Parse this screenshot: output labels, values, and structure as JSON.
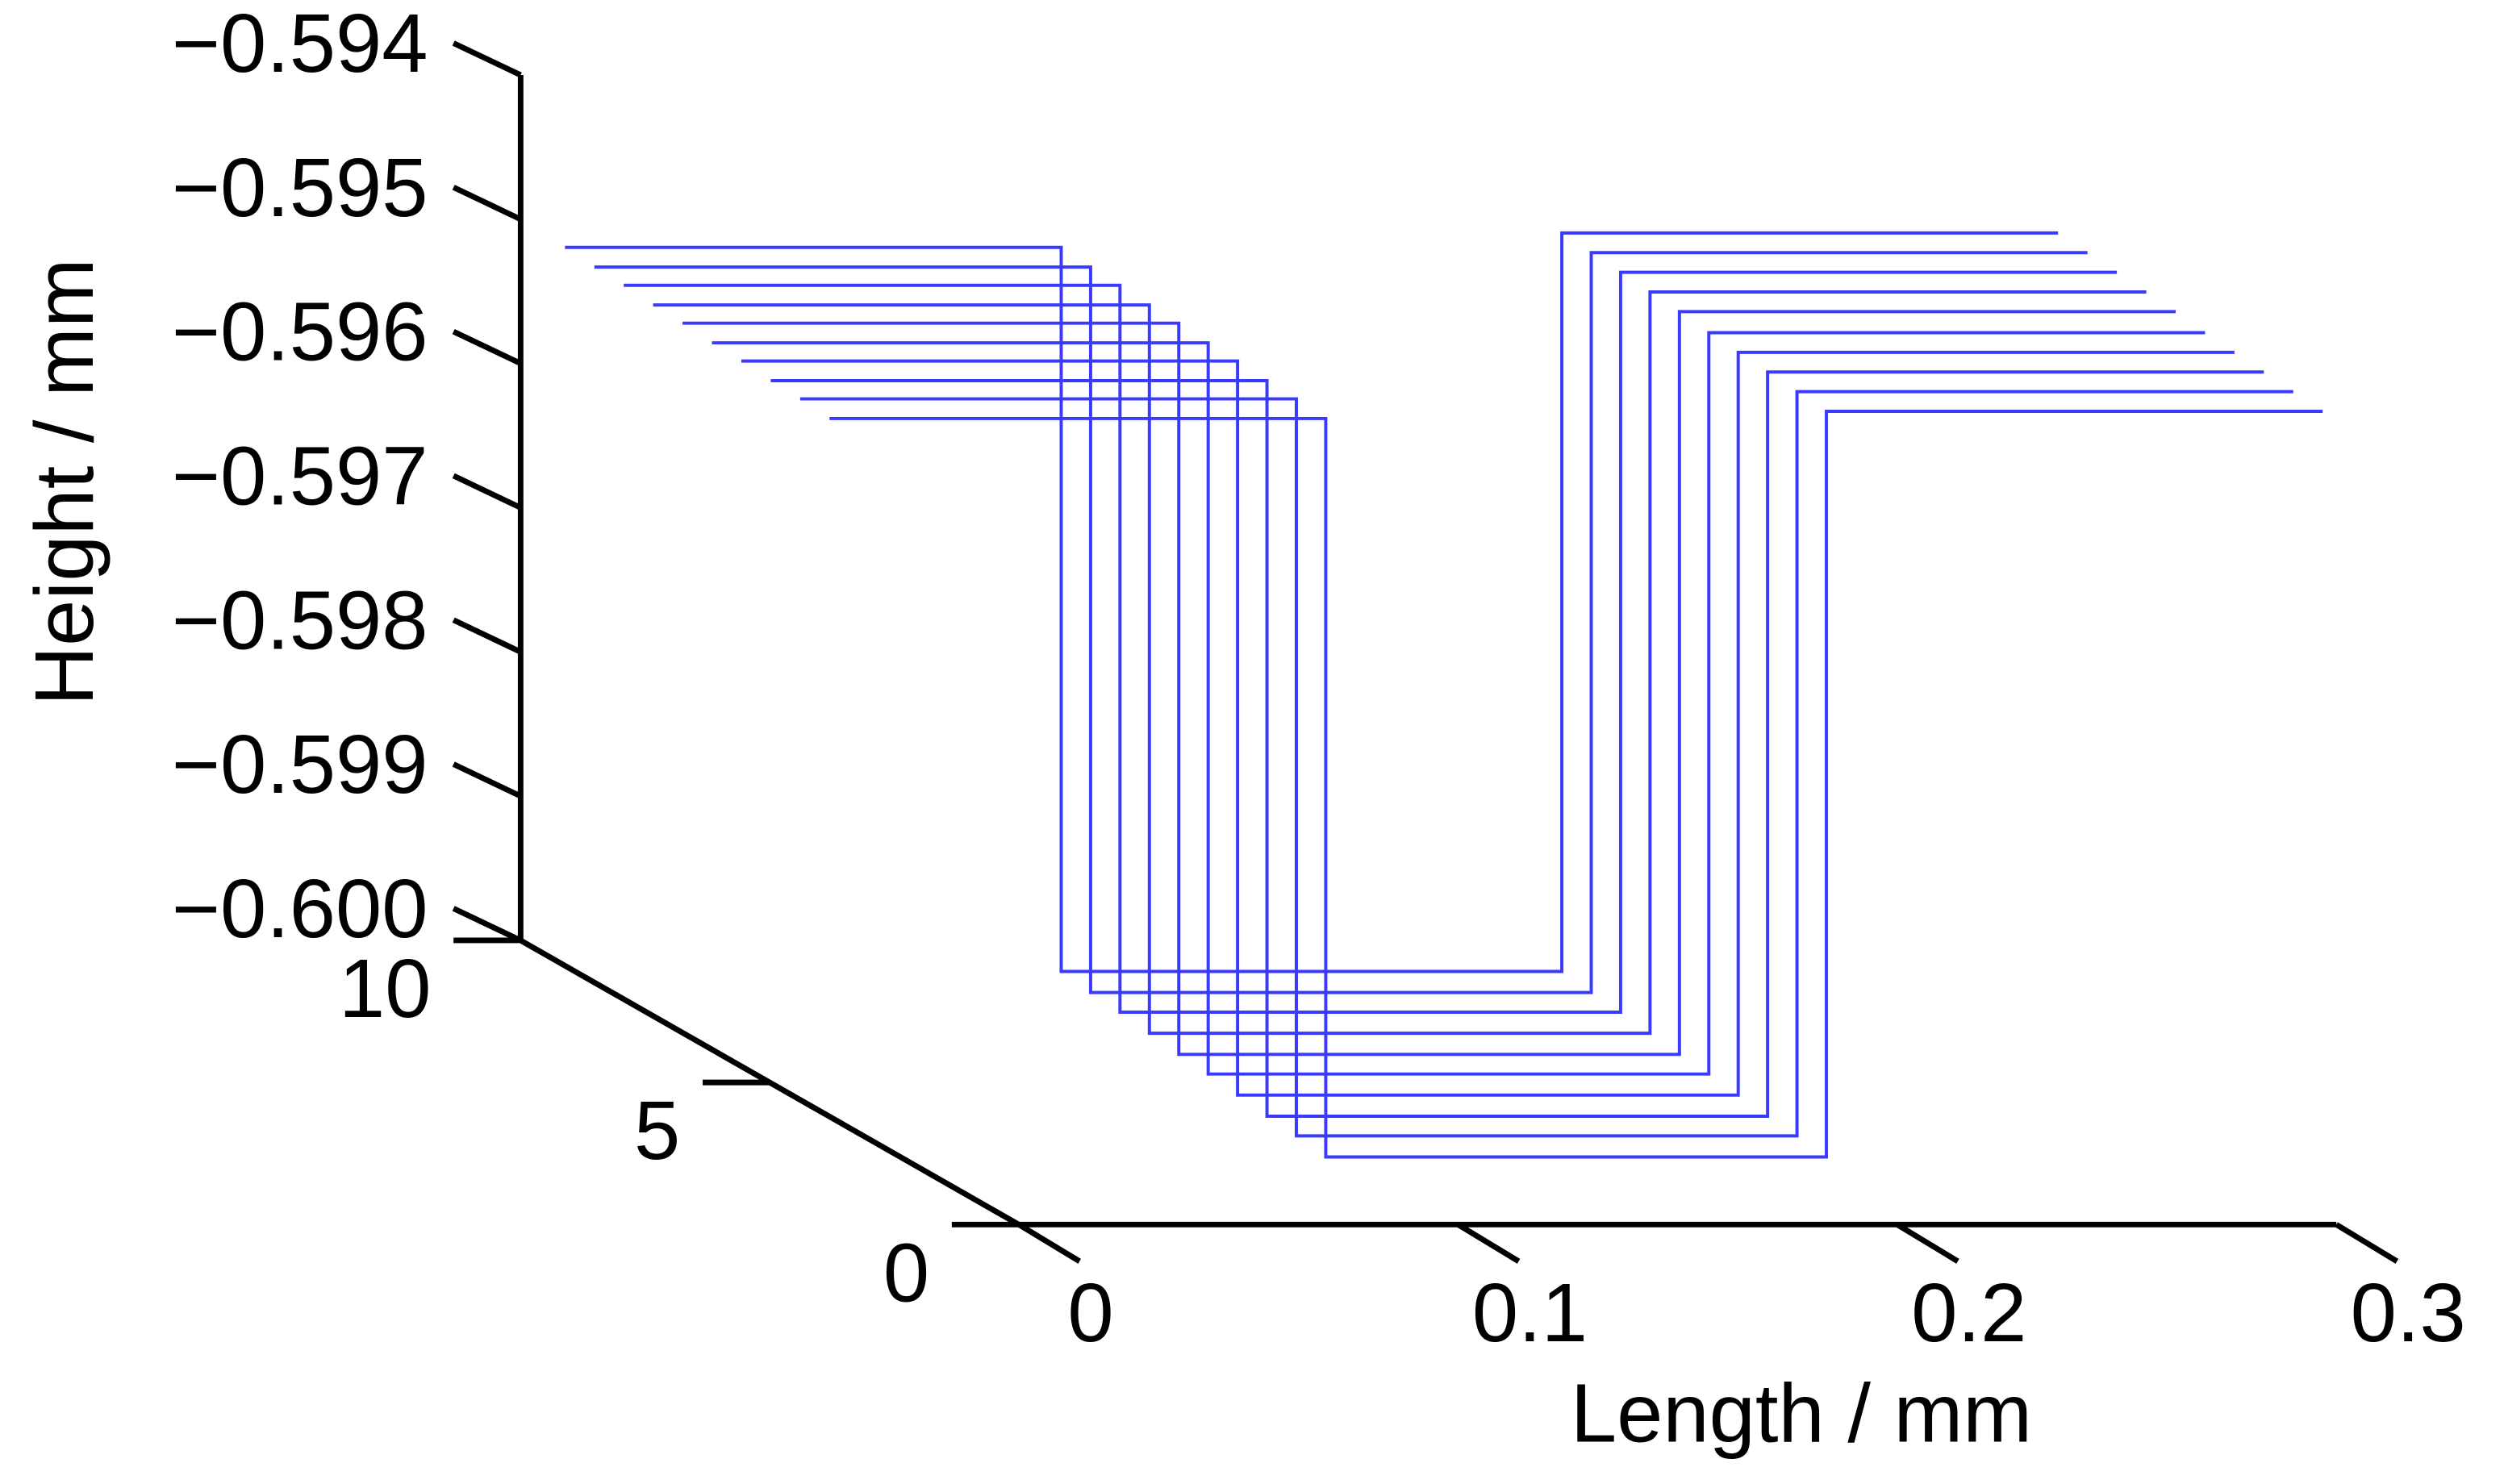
{
  "chart_data": {
    "type": "line3d",
    "xlabel": "Length / mm",
    "zlabel": "Height / mm",
    "x": [
      0,
      0.113,
      0.113,
      0.227,
      0.227,
      0.34
    ],
    "xlim": [
      0,
      0.3
    ],
    "xticks": [
      0,
      0.1,
      0.2,
      0.3
    ],
    "ylim": [
      0,
      10
    ],
    "yticks": [
      0,
      5,
      10
    ],
    "zlim": [
      -0.6,
      -0.594
    ],
    "zticks": [
      {
        "value": -0.6,
        "label": "−0.600"
      },
      {
        "value": -0.599,
        "label": "−0.599"
      },
      {
        "value": -0.598,
        "label": "−0.598"
      },
      {
        "value": -0.597,
        "label": "−0.597"
      },
      {
        "value": -0.596,
        "label": "−0.596"
      },
      {
        "value": -0.595,
        "label": "−0.595"
      },
      {
        "value": -0.594,
        "label": "−0.594"
      }
    ],
    "series": [
      {
        "color": "#3a3aff",
        "depth": 9.11,
        "values": [
          -0.59502,
          -0.59502,
          -0.60004,
          -0.60004,
          -0.59492,
          -0.59492
        ]
      },
      {
        "color": "#3a3aff",
        "depth": 8.52,
        "values": [
          -0.59504,
          -0.59504,
          -0.60007,
          -0.60007,
          -0.59494,
          -0.59494
        ]
      },
      {
        "color": "#3a3aff",
        "depth": 7.93,
        "values": [
          -0.59505,
          -0.59505,
          -0.60009,
          -0.60009,
          -0.59496,
          -0.59496
        ]
      },
      {
        "color": "#3a3aff",
        "depth": 7.34,
        "values": [
          -0.59507,
          -0.59507,
          -0.60012,
          -0.60012,
          -0.59498,
          -0.59498
        ]
      },
      {
        "color": "#3a3aff",
        "depth": 6.75,
        "values": [
          -0.59508,
          -0.59508,
          -0.60015,
          -0.60015,
          -0.595,
          -0.595
        ]
      },
      {
        "color": "#3a3aff",
        "depth": 6.16,
        "values": [
          -0.5951,
          -0.5951,
          -0.60017,
          -0.60017,
          -0.59503,
          -0.59503
        ]
      },
      {
        "color": "#3a3aff",
        "depth": 5.57,
        "values": [
          -0.59511,
          -0.59511,
          -0.6002,
          -0.6002,
          -0.59505,
          -0.59505
        ]
      },
      {
        "color": "#3a3aff",
        "depth": 4.98,
        "values": [
          -0.59513,
          -0.59513,
          -0.60023,
          -0.60023,
          -0.59507,
          -0.59507
        ]
      },
      {
        "color": "#3a3aff",
        "depth": 4.39,
        "values": [
          -0.59514,
          -0.59514,
          -0.60025,
          -0.60025,
          -0.59509,
          -0.59509
        ]
      },
      {
        "color": "#3a3aff",
        "depth": 3.8,
        "values": [
          -0.59516,
          -0.59516,
          -0.60028,
          -0.60028,
          -0.59511,
          -0.59511
        ]
      }
    ]
  }
}
